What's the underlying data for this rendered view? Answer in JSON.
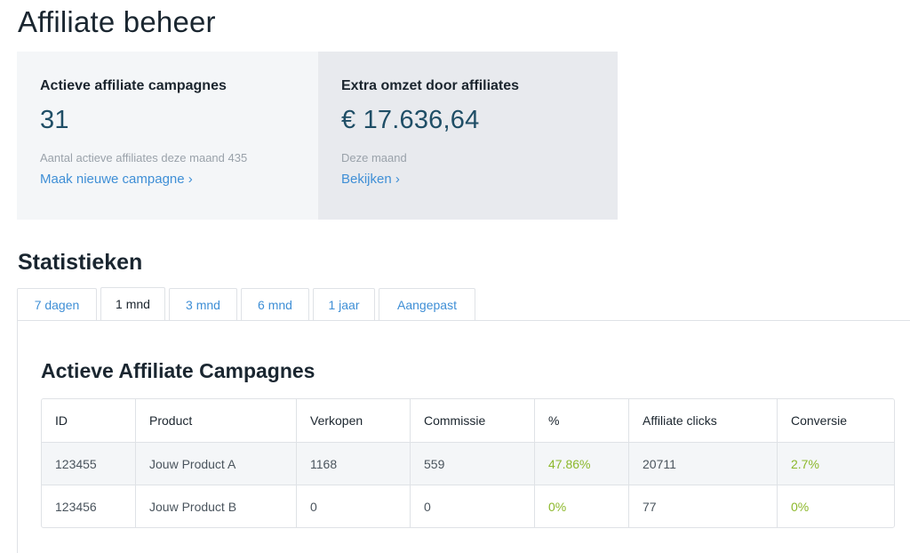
{
  "page": {
    "title": "Affiliate beheer"
  },
  "cards": [
    {
      "title": "Actieve affiliate campagnes",
      "value": "31",
      "sub": "Aantal actieve affiliates deze maand 435",
      "link": "Maak nieuwe campagne ›"
    },
    {
      "title": "Extra omzet door affiliates",
      "value": "€ 17.636,64",
      "sub": "Deze maand",
      "link": "Bekijken ›"
    }
  ],
  "stats": {
    "title": "Statistieken",
    "tabs": [
      "7 dagen",
      "1 mnd",
      "3 mnd",
      "6 mnd",
      "1 jaar",
      "Aangepast"
    ],
    "active_tab": "1 mnd"
  },
  "table": {
    "title": "Actieve Affiliate Campagnes",
    "headers": [
      "ID",
      "Product",
      "Verkopen",
      "Commissie",
      "%",
      "Affiliate clicks",
      "Conversie"
    ],
    "rows": [
      [
        "123455",
        "Jouw Product A",
        "1168",
        "559",
        "47.86%",
        "20711",
        "2.7%"
      ],
      [
        "123456",
        "Jouw Product B",
        "0",
        "0",
        "0%",
        "77",
        "0%"
      ]
    ]
  },
  "colors": {
    "link": "#3f8fd6",
    "value": "#1f4e66",
    "positive": "#8cb82b"
  }
}
